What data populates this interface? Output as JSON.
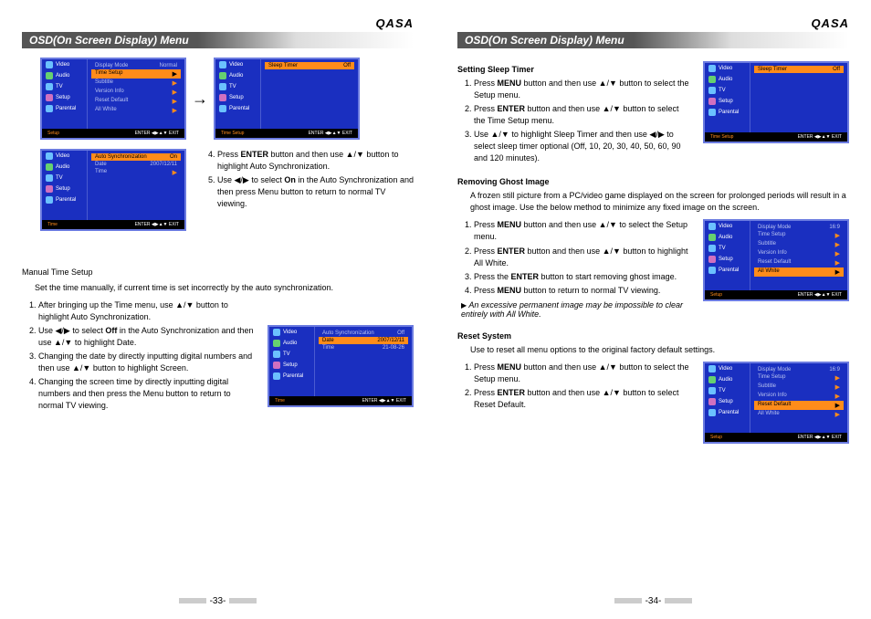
{
  "brand": "QASA",
  "section_title": "OSD(On Screen Display) Menu",
  "page_left_num": "-33-",
  "page_right_num": "-34-",
  "osd_side_items": [
    "Video",
    "Audio",
    "TV",
    "Setup",
    "Parental"
  ],
  "osd_side_icons": [
    "#6bc1ff",
    "#66d070",
    "#6bc1ff",
    "#d070c0",
    "#6bc1ff"
  ],
  "osd_footer_enter": "ENTER",
  "osd_footer_exit": "EXIT",
  "left": {
    "osd1_tab": "Setup",
    "osd1_rows": [
      {
        "label": "Display Mode",
        "val": "Normal",
        "hl": false
      },
      {
        "label": "Time Setup",
        "val": "",
        "hl": true
      },
      {
        "label": "Subtitle",
        "val": "",
        "hl": false
      },
      {
        "label": "Version Info",
        "val": "",
        "hl": false
      },
      {
        "label": "Reset Default",
        "val": "",
        "hl": false
      },
      {
        "label": "All White",
        "val": "",
        "hl": false
      }
    ],
    "osd2_tab": "Time Setup",
    "osd2_rows": [
      {
        "label": "Sleep Timer",
        "val": "Off",
        "hl": true
      }
    ],
    "osd3_tab": "Time",
    "osd3_rows": [
      {
        "label": "Auto Synchronization",
        "val": "On",
        "hl": true
      },
      {
        "label": "Date",
        "val": "2007/12/11",
        "hl": false
      },
      {
        "label": "Time",
        "val": "",
        "hl": false
      }
    ],
    "mid_steps": [
      "Press <b>ENTER</b> button and then use ▲/▼ button to highlight Auto Synchronization.",
      "Use ◀/▶ to select <b>On</b> in the Auto Synchronization and then press Menu button to return to normal TV viewing."
    ],
    "manual_heading": "Manual Time Setup",
    "manual_intro": "Set the time manually, if current time is set incorrectly by the auto synchronization.",
    "manual_steps": [
      "After bringing up the Time menu, use ▲/▼ button to highlight Auto Synchronization.",
      "Use ◀/▶ to select <b>Off</b> in the Auto Synchronization and then use ▲/▼ to highlight Date.",
      "Changing the date by directly inputting digital numbers and then use ▲/▼ button to highlight Screen.",
      "Changing the screen time by directly inputting digital numbers and then press the Menu button to return to normal TV viewing."
    ],
    "osd4_tab": "Time",
    "osd4_rows": [
      {
        "label": "Auto Synchronization",
        "val": "Off",
        "hl": false
      },
      {
        "label": "Date",
        "val": "2007/12/11",
        "hl": true
      },
      {
        "label": "Time",
        "val": "21-08-26",
        "hl": false
      }
    ]
  },
  "right": {
    "sleep_heading": "Setting Sleep Timer",
    "sleep_steps": [
      "Press <b>MENU</b> button and then use ▲/▼ button to select the Setup menu.",
      "Press <b>ENTER</b> button and then use ▲/▼ button to select the Time Setup menu.",
      "Use ▲/▼ to highlight Sleep Timer and then use ◀/▶ to select sleep timer optional (Off, 10, 20, 30, 40, 50, 60, 90 and 120 minutes)."
    ],
    "osd_sleep_tab": "Time Setup",
    "osd_sleep_rows": [
      {
        "label": "Sleep Timer",
        "val": "Off",
        "hl": true
      }
    ],
    "ghost_heading": "Removing Ghost Image",
    "ghost_intro": "A frozen still picture from a PC/video game displayed on the screen for prolonged periods will result in a ghost image. Use the below method to minimize any fixed image on the screen.",
    "ghost_steps": [
      "Press <b>MENU</b> button and then use ▲/▼ to select the Setup menu.",
      "Press <b>ENTER</b> button and then use ▲/▼ button to highlight All White.",
      "Press the <b>ENTER</b> button to start removing ghost image.",
      "Press <b>MENU</b> button to return to normal TV viewing."
    ],
    "ghost_note": "An excessive permanent  image may be impossible to clear entirely with All White.",
    "osd_ghost_tab": "Setup",
    "osd_ghost_rows": [
      {
        "label": "Display Mode",
        "val": "16:9",
        "hl": false
      },
      {
        "label": "Time Setup",
        "val": "",
        "hl": false
      },
      {
        "label": "Subtitle",
        "val": "",
        "hl": false
      },
      {
        "label": "Version Info",
        "val": "",
        "hl": false
      },
      {
        "label": "Reset Default",
        "val": "",
        "hl": false
      },
      {
        "label": "All White",
        "val": "",
        "hl": true
      }
    ],
    "reset_heading": "Reset System",
    "reset_intro": "Use to reset all menu options to the original factory default settings.",
    "reset_steps": [
      "Press <b>MENU</b> button and then use ▲/▼ button to select the Setup menu.",
      "Press <b>ENTER</b> button and then use ▲/▼ button to select Reset Default."
    ],
    "osd_reset_tab": "Setup",
    "osd_reset_rows": [
      {
        "label": "Display Mode",
        "val": "16:9",
        "hl": false
      },
      {
        "label": "Time Setup",
        "val": "",
        "hl": false
      },
      {
        "label": "Subtitle",
        "val": "",
        "hl": false
      },
      {
        "label": "Version Info",
        "val": "",
        "hl": false
      },
      {
        "label": "Reset Default",
        "val": "",
        "hl": true
      },
      {
        "label": "All White",
        "val": "",
        "hl": false
      }
    ]
  }
}
